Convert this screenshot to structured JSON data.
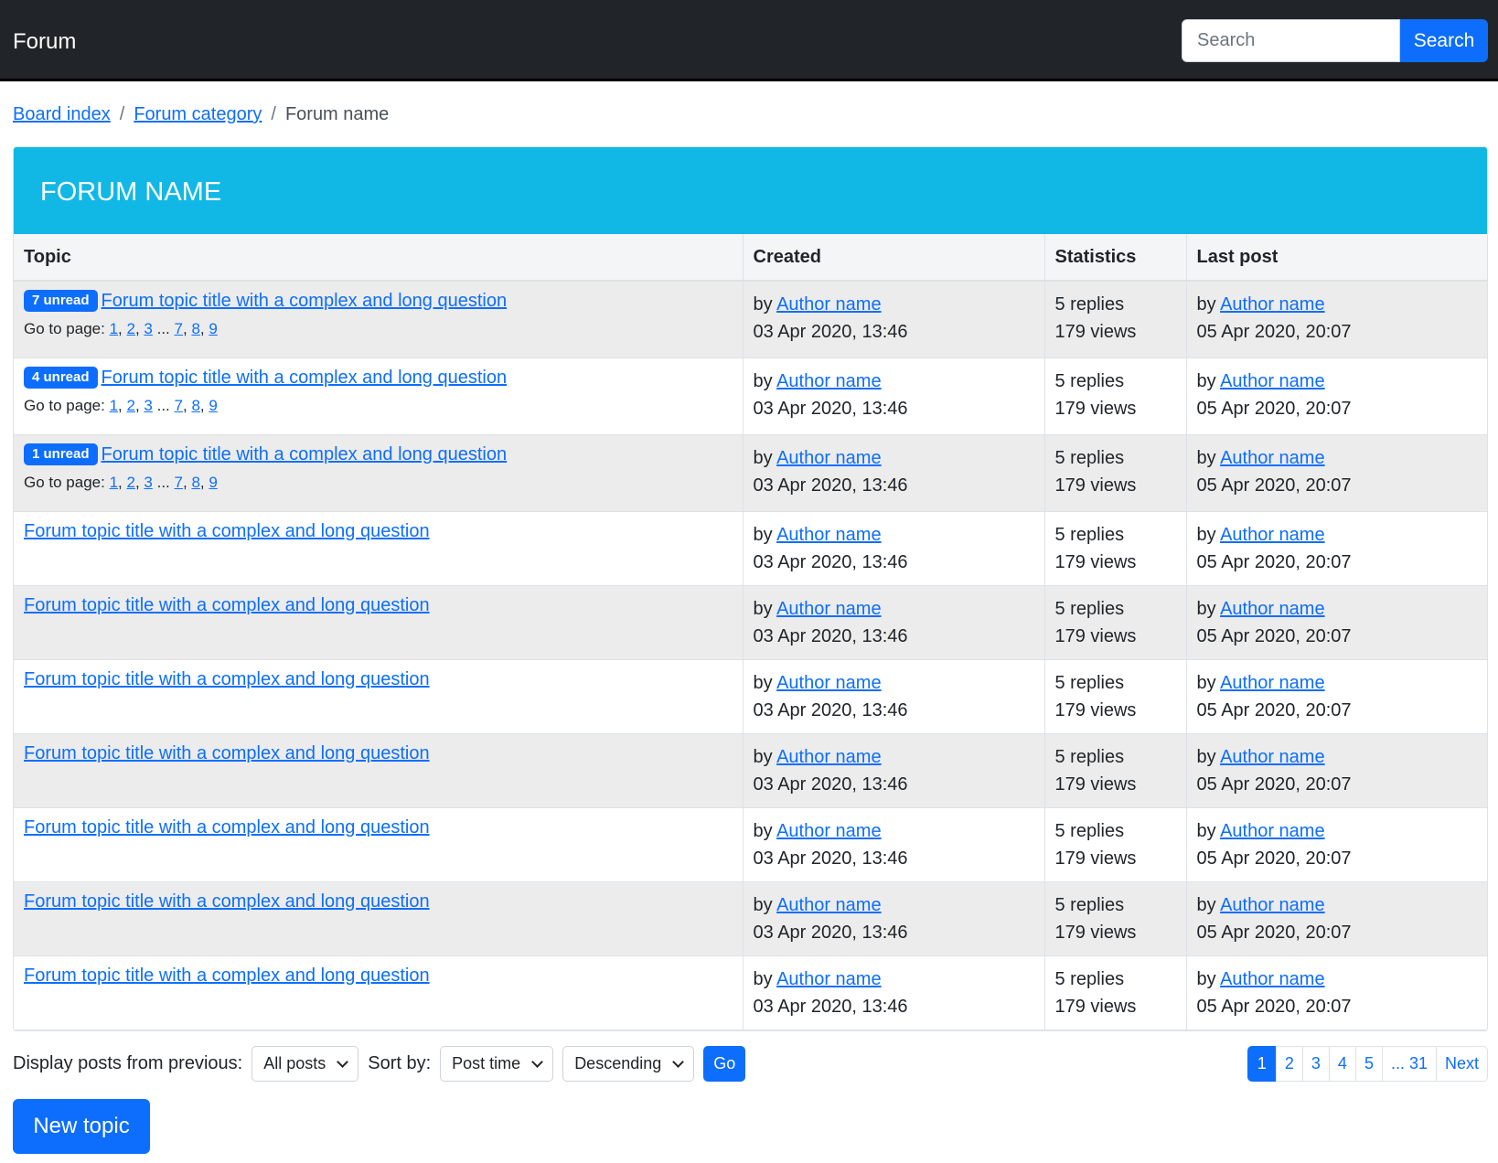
{
  "navbar": {
    "brand": "Forum",
    "search_placeholder": "Search",
    "search_button": "Search"
  },
  "breadcrumb": [
    {
      "label": "Board index"
    },
    {
      "label": "Forum category"
    },
    {
      "label": "Forum name"
    }
  ],
  "forum": {
    "title": "FORUM NAME"
  },
  "table": {
    "headers": [
      "Topic",
      "Created",
      "Statistics",
      "Last post"
    ],
    "goto_label": "Go to page:",
    "goto_pages": [
      "1",
      "2",
      "3",
      "7",
      "8",
      "9"
    ],
    "rows": [
      {
        "badge": "7 unread",
        "title": "Forum topic title with a complex and long question",
        "pages": true,
        "by": "by",
        "author": "Author name",
        "created": "03 Apr 2020, 13:46",
        "replies": "5 replies",
        "views": "179 views",
        "last_author": "Author name",
        "last_date": "05 Apr 2020, 20:07"
      },
      {
        "badge": "4 unread",
        "title": "Forum topic title with a complex and long question",
        "pages": true,
        "by": "by",
        "author": "Author name",
        "created": "03 Apr 2020, 13:46",
        "replies": "5 replies",
        "views": "179 views",
        "last_author": "Author name",
        "last_date": "05 Apr 2020, 20:07"
      },
      {
        "badge": "1 unread",
        "title": "Forum topic title with a complex and long question",
        "pages": true,
        "by": "by",
        "author": "Author name",
        "created": "03 Apr 2020, 13:46",
        "replies": "5 replies",
        "views": "179 views",
        "last_author": "Author name",
        "last_date": "05 Apr 2020, 20:07"
      },
      {
        "title": "Forum topic title with a complex and long question",
        "by": "by",
        "author": "Author name",
        "created": "03 Apr 2020, 13:46",
        "replies": "5 replies",
        "views": "179 views",
        "last_author": "Author name",
        "last_date": "05 Apr 2020, 20:07"
      },
      {
        "title": "Forum topic title with a complex and long question",
        "by": "by",
        "author": "Author name",
        "created": "03 Apr 2020, 13:46",
        "replies": "5 replies",
        "views": "179 views",
        "last_author": "Author name",
        "last_date": "05 Apr 2020, 20:07"
      },
      {
        "title": "Forum topic title with a complex and long question",
        "by": "by",
        "author": "Author name",
        "created": "03 Apr 2020, 13:46",
        "replies": "5 replies",
        "views": "179 views",
        "last_author": "Author name",
        "last_date": "05 Apr 2020, 20:07"
      },
      {
        "title": "Forum topic title with a complex and long question",
        "by": "by",
        "author": "Author name",
        "created": "03 Apr 2020, 13:46",
        "replies": "5 replies",
        "views": "179 views",
        "last_author": "Author name",
        "last_date": "05 Apr 2020, 20:07"
      },
      {
        "title": "Forum topic title with a complex and long question",
        "by": "by",
        "author": "Author name",
        "created": "03 Apr 2020, 13:46",
        "replies": "5 replies",
        "views": "179 views",
        "last_author": "Author name",
        "last_date": "05 Apr 2020, 20:07"
      },
      {
        "title": "Forum topic title with a complex and long question",
        "by": "by",
        "author": "Author name",
        "created": "03 Apr 2020, 13:46",
        "replies": "5 replies",
        "views": "179 views",
        "last_author": "Author name",
        "last_date": "05 Apr 2020, 20:07"
      },
      {
        "title": "Forum topic title with a complex and long question",
        "by": "by",
        "author": "Author name",
        "created": "03 Apr 2020, 13:46",
        "replies": "5 replies",
        "views": "179 views",
        "last_author": "Author name",
        "last_date": "05 Apr 2020, 20:07"
      }
    ]
  },
  "controls": {
    "display_label": "Display posts from previous:",
    "display_value": "All posts",
    "sort_label": "Sort by:",
    "sort_value": "Post time",
    "order_value": "Descending",
    "go": "Go"
  },
  "pagination": {
    "pages": [
      "1",
      "2",
      "3",
      "4",
      "5",
      "... 31"
    ],
    "active": "1",
    "next": "Next"
  },
  "new_topic": "New topic",
  "colors": {
    "navbar": "#212529",
    "accent": "#0d6efd",
    "forum_header": "#11b8e6"
  }
}
